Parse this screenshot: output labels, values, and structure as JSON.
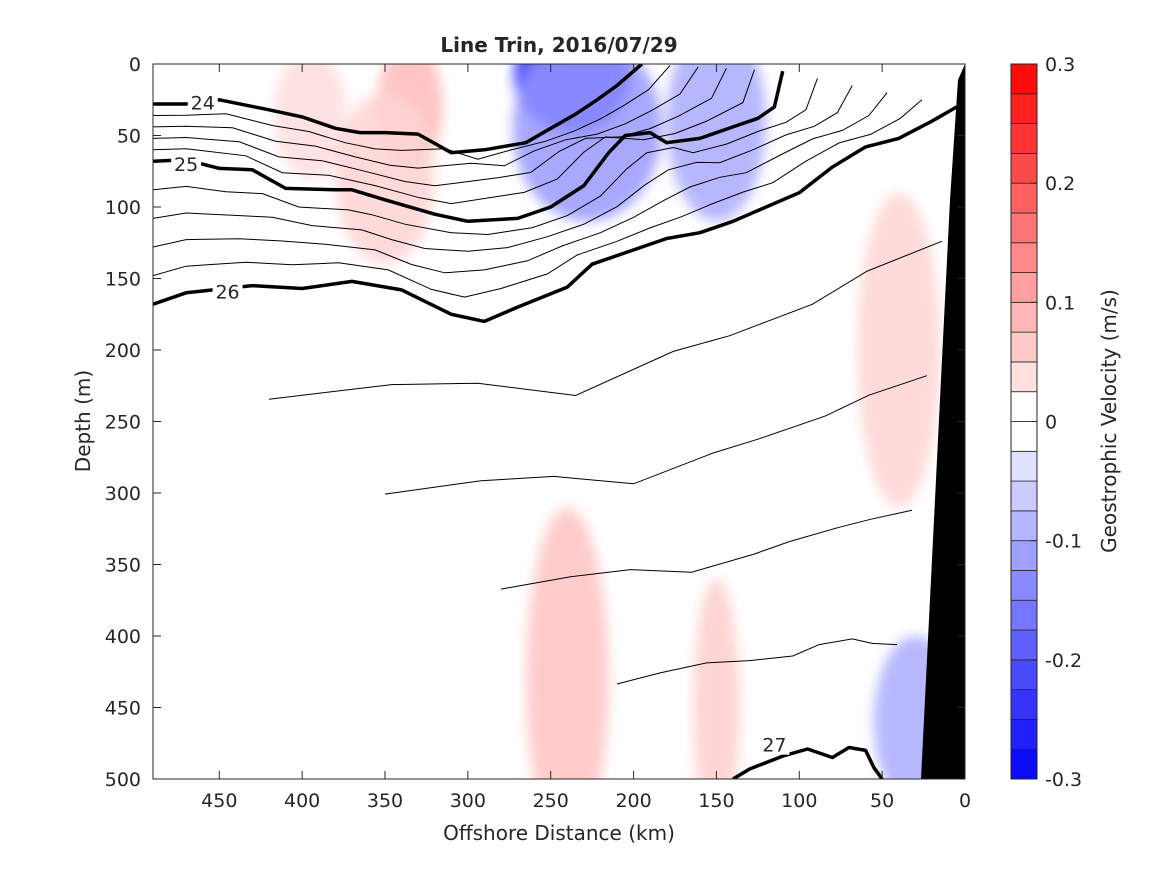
{
  "chart_data": {
    "type": "contour",
    "title": "Line Trin, 2016/07/29",
    "xlabel": "Offshore Distance (km)",
    "ylabel": "Depth (m)",
    "xlim": [
      490,
      0
    ],
    "ylim": [
      0,
      500
    ],
    "x_reversed": true,
    "y_reversed": true,
    "xticks": [
      450,
      400,
      350,
      300,
      250,
      200,
      150,
      100,
      50,
      0
    ],
    "yticks": [
      0,
      50,
      100,
      150,
      200,
      250,
      300,
      350,
      400,
      450,
      500
    ],
    "colorbar": {
      "label": "Geostrophic Velocity (m/s)",
      "range": [
        -0.3,
        0.3
      ],
      "step": 0.025,
      "ticks": [
        0.3,
        0.2,
        0.1,
        0,
        -0.1,
        -0.2,
        -0.3
      ],
      "tick_labels": [
        "0.3",
        "0.2",
        "0.1",
        "0",
        "-0.1",
        "-0.2",
        "-0.3"
      ],
      "positive_color": "#ff0000",
      "negative_color": "#0000ff"
    },
    "velocity_features": [
      {
        "x": 237,
        "depth": 10,
        "rx": 35,
        "ry": 38,
        "value": -0.28
      },
      {
        "x": 228,
        "depth": 45,
        "rx": 45,
        "ry": 65,
        "value": -0.12
      },
      {
        "x": 150,
        "depth": 40,
        "rx": 30,
        "ry": 70,
        "value": -0.1
      },
      {
        "x": 335,
        "depth": 30,
        "rx": 20,
        "ry": 45,
        "value": 0.08
      },
      {
        "x": 350,
        "depth": 80,
        "rx": 30,
        "ry": 60,
        "value": 0.05
      },
      {
        "x": 395,
        "depth": 35,
        "rx": 22,
        "ry": 45,
        "value": 0.04
      },
      {
        "x": 240,
        "depth": 430,
        "rx": 25,
        "ry": 120,
        "value": 0.07
      },
      {
        "x": 150,
        "depth": 450,
        "rx": 14,
        "ry": 90,
        "value": 0.06
      },
      {
        "x": 40,
        "depth": 200,
        "rx": 25,
        "ry": 110,
        "value": 0.05
      },
      {
        "x": 30,
        "depth": 460,
        "rx": 25,
        "ry": 60,
        "value": -0.1
      }
    ],
    "isopycnals": [
      {
        "value": 24,
        "bold": true,
        "label_at": [
          460,
          27
        ],
        "points": [
          [
            490,
            28
          ],
          [
            470,
            28
          ],
          [
            450,
            25
          ],
          [
            420,
            32
          ],
          [
            400,
            37
          ],
          [
            380,
            45
          ],
          [
            365,
            48
          ],
          [
            350,
            48
          ],
          [
            330,
            49
          ],
          [
            310,
            62
          ],
          [
            290,
            60
          ],
          [
            265,
            55
          ],
          [
            250,
            45
          ],
          [
            235,
            35
          ],
          [
            222,
            25
          ],
          [
            210,
            15
          ],
          [
            195,
            0
          ]
        ]
      },
      {
        "value": 25,
        "bold": true,
        "label_at": [
          470,
          70
        ],
        "points": [
          [
            490,
            68
          ],
          [
            470,
            67
          ],
          [
            450,
            73
          ],
          [
            430,
            74
          ],
          [
            410,
            87
          ],
          [
            380,
            88
          ],
          [
            370,
            88
          ],
          [
            350,
            95
          ],
          [
            320,
            105
          ],
          [
            300,
            110
          ],
          [
            270,
            108
          ],
          [
            250,
            100
          ],
          [
            230,
            85
          ],
          [
            215,
            62
          ],
          [
            205,
            50
          ],
          [
            190,
            48
          ],
          [
            180,
            55
          ],
          [
            160,
            52
          ],
          [
            140,
            44
          ],
          [
            125,
            38
          ],
          [
            115,
            30
          ],
          [
            110,
            5
          ]
        ]
      },
      {
        "value": 26,
        "bold": true,
        "label_at": [
          445,
          159
        ],
        "points": [
          [
            490,
            168
          ],
          [
            470,
            160
          ],
          [
            430,
            155
          ],
          [
            400,
            157
          ],
          [
            370,
            152
          ],
          [
            340,
            158
          ],
          [
            310,
            175
          ],
          [
            290,
            180
          ],
          [
            270,
            170
          ],
          [
            240,
            156
          ],
          [
            225,
            140
          ],
          [
            200,
            130
          ],
          [
            180,
            122
          ],
          [
            160,
            118
          ],
          [
            140,
            110
          ],
          [
            120,
            100
          ],
          [
            100,
            90
          ],
          [
            80,
            72
          ],
          [
            60,
            58
          ],
          [
            40,
            52
          ],
          [
            20,
            40
          ],
          [
            5,
            30
          ]
        ]
      },
      {
        "value": 27,
        "bold": true,
        "label_at": [
          115,
          476
        ],
        "points": [
          [
            140,
            500
          ],
          [
            130,
            493
          ],
          [
            110,
            484
          ],
          [
            95,
            479
          ],
          [
            80,
            485
          ],
          [
            70,
            478
          ],
          [
            60,
            480
          ],
          [
            55,
            492
          ],
          [
            50,
            500
          ]
        ]
      }
    ]
  }
}
